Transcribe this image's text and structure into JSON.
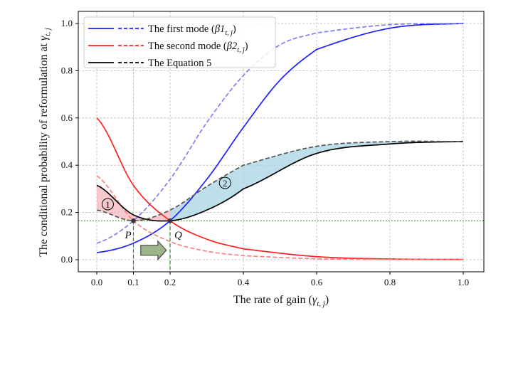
{
  "chart_data": {
    "type": "line",
    "title": "",
    "xlabel": "The rate of gain (",
    "xlabel_symbol": "γ",
    "xlabel_sub": "t, j",
    "xlabel_end": ")",
    "ylabel": "The conditional probability of reformulation at ",
    "ylabel_symbol": "γ",
    "ylabel_sub": "t, j",
    "xlim": [
      -0.05,
      1.05
    ],
    "ylim": [
      -0.05,
      1.05
    ],
    "xticks": [
      0.0,
      0.1,
      0.2,
      0.4,
      0.6,
      0.8,
      1.0
    ],
    "xtick_labels": [
      "0.0",
      "0.1",
      "0.2",
      "0.4",
      "0.6",
      "0.8",
      "1.0"
    ],
    "yticks": [
      0.0,
      0.2,
      0.4,
      0.6,
      0.8,
      1.0
    ],
    "ytick_labels": [
      "0.0",
      "0.2",
      "0.4",
      "0.6",
      "0.8",
      "1.0"
    ],
    "grid": true,
    "legend_placement": "top-left",
    "legend": [
      {
        "label": "The first mode (",
        "symbol": "β1",
        "sub": "t, j",
        "end": ")",
        "color": "#1f1fff"
      },
      {
        "label": "The second mode (",
        "symbol": "β2",
        "sub": "t, j",
        "end": ")",
        "color": "#ff2020"
      },
      {
        "label": "The Equation 5",
        "symbol": "",
        "sub": "",
        "end": "",
        "color": "#000000"
      }
    ],
    "series": [
      {
        "id": "beta1-solid",
        "style": "solid",
        "color": "#1f1fff",
        "x": [
          0,
          0.1,
          0.2,
          0.3,
          0.4,
          0.5,
          0.6,
          0.8,
          1.0
        ],
        "y": [
          0.03,
          0.07,
          0.165,
          0.34,
          0.56,
          0.76,
          0.89,
          0.98,
          1.0
        ]
      },
      {
        "id": "beta1-dashed",
        "style": "dashed",
        "color": "#8080ee",
        "x": [
          0,
          0.1,
          0.2,
          0.3,
          0.4,
          0.5,
          0.6,
          0.8,
          1.0
        ],
        "y": [
          0.07,
          0.165,
          0.34,
          0.58,
          0.78,
          0.91,
          0.96,
          0.995,
          1.0
        ]
      },
      {
        "id": "beta2-solid",
        "style": "solid",
        "color": "#ff2020",
        "x": [
          0,
          0.1,
          0.2,
          0.3,
          0.4,
          0.6,
          0.8,
          1.0
        ],
        "y": [
          0.6,
          0.315,
          0.165,
          0.087,
          0.046,
          0.013,
          0.003,
          0.001
        ]
      },
      {
        "id": "beta2-dashed",
        "style": "dashed",
        "color": "#ff8080",
        "x": [
          0,
          0.1,
          0.2,
          0.3,
          0.4,
          0.6,
          0.8,
          1.0
        ],
        "y": [
          0.355,
          0.165,
          0.077,
          0.036,
          0.017,
          0.004,
          0.001,
          0.0
        ]
      },
      {
        "id": "eq5-solid",
        "style": "solid",
        "color": "#000000",
        "x": [
          0,
          0.1,
          0.2,
          0.3,
          0.4,
          0.6,
          0.8,
          1.0
        ],
        "y": [
          0.315,
          0.19,
          0.165,
          0.21,
          0.3,
          0.45,
          0.49,
          0.5
        ]
      },
      {
        "id": "eq5-dashed",
        "style": "dashed",
        "color": "#555555",
        "x": [
          0,
          0.1,
          0.2,
          0.3,
          0.4,
          0.6,
          0.8,
          1.0
        ],
        "y": [
          0.21,
          0.165,
          0.21,
          0.31,
          0.4,
          0.48,
          0.5,
          0.5
        ]
      }
    ],
    "shaded_regions": [
      {
        "label": "①",
        "between": [
          "eq5-solid",
          "eq5-dashed"
        ],
        "x_range": [
          0,
          0.2
        ],
        "color": "#f4b6bc",
        "label_x": 0.03,
        "label_y": 0.235
      },
      {
        "label": "②",
        "between": [
          "eq5-dashed",
          "eq5-solid"
        ],
        "x_range": [
          0.2,
          1.0
        ],
        "color": "#a8d4e2",
        "label_x": 0.35,
        "label_y": 0.325
      }
    ],
    "points": [
      {
        "label": "P",
        "x": 0.1,
        "y": 0.165
      },
      {
        "label": "Q",
        "x": 0.2,
        "y": 0.165
      }
    ],
    "reference_line_y": 0.165,
    "reference_color": "#3a8a2a",
    "arrow": {
      "x_from": 0.12,
      "x_to": 0.19,
      "y": 0.04,
      "color": "#9db58a"
    }
  }
}
